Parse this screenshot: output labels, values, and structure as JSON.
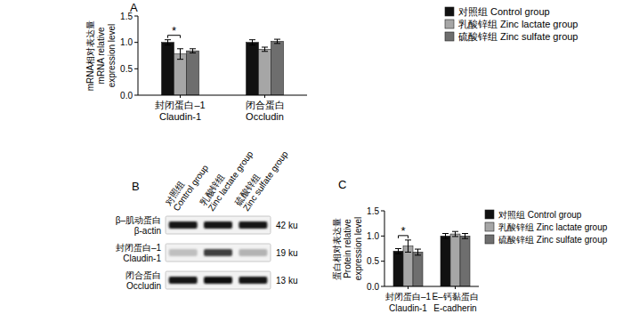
{
  "chart_data": [
    {
      "type": "bar",
      "title": "A",
      "y_label": "mRNA相对表达量\nmRNA relative\nexpression level",
      "categories": [
        "封闭蛋白–1\nClaudin-1",
        "闭合蛋白\nOccludin"
      ],
      "series": [
        {
          "name": "对照组 Control group",
          "color": "#111111",
          "values": [
            1.0,
            1.0
          ],
          "errors": [
            0.05,
            0.05
          ]
        },
        {
          "name": "乳酸锌组 Zinc lactate group",
          "color": "#a6a6a6",
          "values": [
            0.78,
            0.87
          ],
          "errors": [
            0.1,
            0.04
          ]
        },
        {
          "name": "硫酸锌组 Zinc sulfate group",
          "color": "#6e6e6e",
          "values": [
            0.84,
            1.02
          ],
          "errors": [
            0.04,
            0.04
          ]
        }
      ],
      "ylim": [
        0,
        1.5
      ],
      "yticks": [
        {
          "value": 0,
          "label": "0.0"
        },
        0.5,
        {
          "value": 1,
          "label": "1.0"
        },
        1.5
      ],
      "grid": false,
      "legend": "right",
      "annotations": [
        {
          "text": "*",
          "category": "封闭蛋白–1\nClaudin-1",
          "between": [
            "对照组 Control group",
            "乳酸锌组 Zinc lactate group"
          ]
        }
      ]
    },
    {
      "type": "bar",
      "title": "C",
      "y_label": "蛋白相对表达量\nProtein relative\nexpression level",
      "categories": [
        "封闭蛋白–1\nClaudin-1",
        "E–钙黏蛋白\nE-cadherin"
      ],
      "series": [
        {
          "name": "对照组 Control group",
          "color": "#111111",
          "values": [
            0.7,
            1.0
          ],
          "errors": [
            0.05,
            0.05
          ]
        },
        {
          "name": "乳酸锌组 Zinc lactate group",
          "color": "#a6a6a6",
          "values": [
            0.8,
            1.04
          ],
          "errors": [
            0.12,
            0.05
          ]
        },
        {
          "name": "硫酸锌组 Zinc sulfate group",
          "color": "#6e6e6e",
          "values": [
            0.68,
            1.0
          ],
          "errors": [
            0.06,
            0.05
          ]
        }
      ],
      "ylim": [
        0,
        1.5
      ],
      "yticks": [
        {
          "value": 0,
          "label": "0.0"
        },
        0.5,
        {
          "value": 1,
          "label": "1.0"
        },
        1.5
      ],
      "grid": false,
      "legend": "right",
      "annotations": [
        {
          "text": "*",
          "category": "封闭蛋白–1\nClaudin-1",
          "between": [
            "对照组 Control group",
            "乳酸锌组 Zinc lactate group"
          ]
        }
      ]
    }
  ],
  "blot": {
    "title": "B",
    "lanes": [
      "对照组\nControl group",
      "乳酸锌组\nZinc lactate group",
      "硫酸锌组\nZinc sulfate group"
    ],
    "rows": [
      {
        "label": "β–肌动蛋白\nβ-actin",
        "size": "42 ku",
        "intensity": [
          0.92,
          0.92,
          0.92
        ]
      },
      {
        "label": "封闭蛋白–1\nClaudin-1",
        "size": "19 ku",
        "intensity": [
          0.25,
          0.75,
          0.3
        ]
      },
      {
        "label": "闭合蛋白\nOccludin",
        "size": "13 ku",
        "intensity": [
          0.9,
          0.95,
          0.9
        ]
      }
    ]
  }
}
